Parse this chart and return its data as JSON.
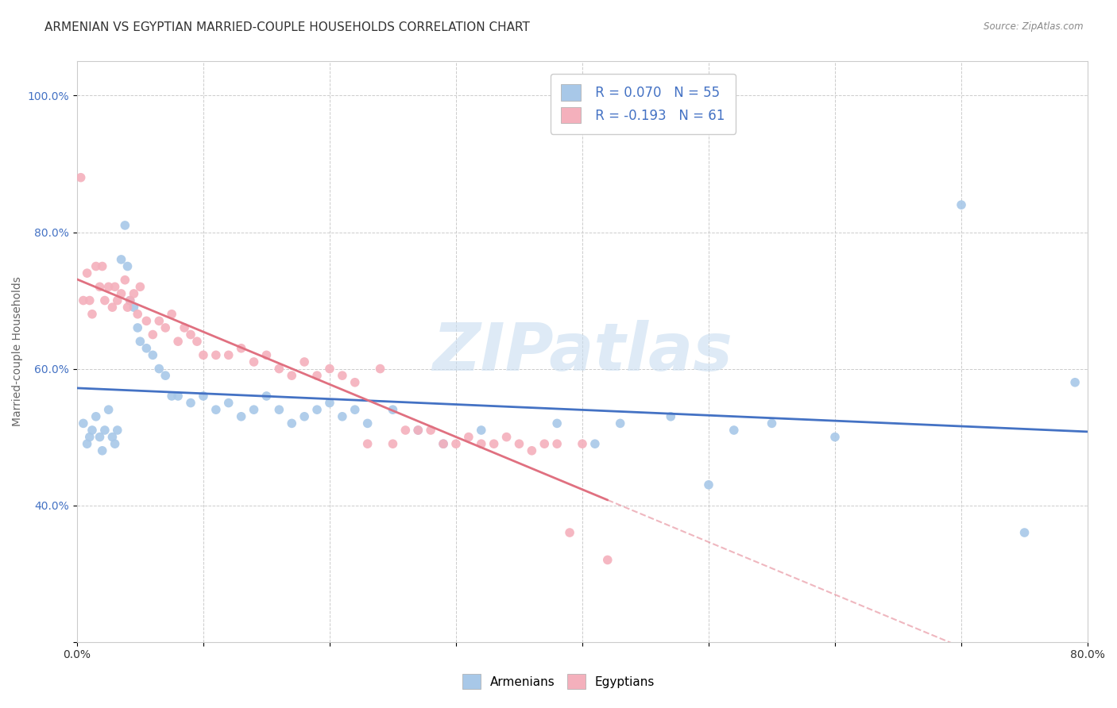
{
  "title": "ARMENIAN VS EGYPTIAN MARRIED-COUPLE HOUSEHOLDS CORRELATION CHART",
  "source": "Source: ZipAtlas.com",
  "ylabel": "Married-couple Households",
  "xlabel": "",
  "xlim": [
    0.0,
    0.8
  ],
  "ylim": [
    0.2,
    1.05
  ],
  "xticks": [
    0.0,
    0.1,
    0.2,
    0.3,
    0.4,
    0.5,
    0.6,
    0.7,
    0.8
  ],
  "xticklabels": [
    "0.0%",
    "",
    "",
    "",
    "",
    "",
    "",
    "",
    "80.0%"
  ],
  "yticks": [
    0.2,
    0.4,
    0.6,
    0.8,
    1.0
  ],
  "yticklabels": [
    "",
    "40.0%",
    "60.0%",
    "80.0%",
    "100.0%"
  ],
  "armenian_color": "#a8c8e8",
  "egyptian_color": "#f4b0bc",
  "armenian_line_color": "#4472c4",
  "egyptian_line_color": "#e07080",
  "armenian_R": 0.07,
  "armenian_N": 55,
  "egyptian_R": -0.193,
  "egyptian_N": 61,
  "armenian_scatter_x": [
    0.005,
    0.008,
    0.01,
    0.012,
    0.015,
    0.018,
    0.02,
    0.022,
    0.025,
    0.028,
    0.03,
    0.032,
    0.035,
    0.038,
    0.04,
    0.042,
    0.045,
    0.048,
    0.05,
    0.055,
    0.06,
    0.065,
    0.07,
    0.075,
    0.08,
    0.09,
    0.1,
    0.11,
    0.12,
    0.13,
    0.14,
    0.15,
    0.16,
    0.17,
    0.18,
    0.19,
    0.2,
    0.21,
    0.22,
    0.23,
    0.25,
    0.27,
    0.29,
    0.32,
    0.38,
    0.41,
    0.43,
    0.47,
    0.5,
    0.52,
    0.55,
    0.6,
    0.7,
    0.75,
    0.79
  ],
  "armenian_scatter_y": [
    0.52,
    0.49,
    0.5,
    0.51,
    0.53,
    0.5,
    0.48,
    0.51,
    0.54,
    0.5,
    0.49,
    0.51,
    0.76,
    0.81,
    0.75,
    0.7,
    0.69,
    0.66,
    0.64,
    0.63,
    0.62,
    0.6,
    0.59,
    0.56,
    0.56,
    0.55,
    0.56,
    0.54,
    0.55,
    0.53,
    0.54,
    0.56,
    0.54,
    0.52,
    0.53,
    0.54,
    0.55,
    0.53,
    0.54,
    0.52,
    0.54,
    0.51,
    0.49,
    0.51,
    0.52,
    0.49,
    0.52,
    0.53,
    0.43,
    0.51,
    0.52,
    0.5,
    0.84,
    0.36,
    0.58
  ],
  "egyptian_scatter_x": [
    0.003,
    0.005,
    0.008,
    0.01,
    0.012,
    0.015,
    0.018,
    0.02,
    0.022,
    0.025,
    0.028,
    0.03,
    0.032,
    0.035,
    0.038,
    0.04,
    0.042,
    0.045,
    0.048,
    0.05,
    0.055,
    0.06,
    0.065,
    0.07,
    0.075,
    0.08,
    0.085,
    0.09,
    0.095,
    0.1,
    0.11,
    0.12,
    0.13,
    0.14,
    0.15,
    0.16,
    0.17,
    0.18,
    0.19,
    0.2,
    0.21,
    0.22,
    0.23,
    0.24,
    0.25,
    0.26,
    0.27,
    0.28,
    0.29,
    0.3,
    0.31,
    0.32,
    0.33,
    0.34,
    0.35,
    0.36,
    0.37,
    0.38,
    0.39,
    0.4,
    0.42
  ],
  "egyptian_scatter_y": [
    0.88,
    0.7,
    0.74,
    0.7,
    0.68,
    0.75,
    0.72,
    0.75,
    0.7,
    0.72,
    0.69,
    0.72,
    0.7,
    0.71,
    0.73,
    0.69,
    0.7,
    0.71,
    0.68,
    0.72,
    0.67,
    0.65,
    0.67,
    0.66,
    0.68,
    0.64,
    0.66,
    0.65,
    0.64,
    0.62,
    0.62,
    0.62,
    0.63,
    0.61,
    0.62,
    0.6,
    0.59,
    0.61,
    0.59,
    0.6,
    0.59,
    0.58,
    0.49,
    0.6,
    0.49,
    0.51,
    0.51,
    0.51,
    0.49,
    0.49,
    0.5,
    0.49,
    0.49,
    0.5,
    0.49,
    0.48,
    0.49,
    0.49,
    0.36,
    0.49,
    0.32
  ],
  "background_color": "#ffffff",
  "grid_color": "#cccccc",
  "title_fontsize": 11,
  "axis_label_fontsize": 10,
  "tick_fontsize": 10,
  "watermark_color": "#c8ddf0",
  "watermark_alpha": 0.6,
  "watermark_fontsize": 60
}
